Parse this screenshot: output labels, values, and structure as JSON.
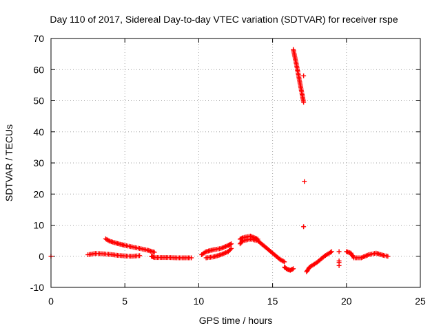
{
  "chart_data": {
    "type": "scatter",
    "title": "Day 110 of 2017, Sidereal Day-to-day VTEC variation (SDTVAR) for receiver rspe",
    "xlabel": "GPS time / hours",
    "ylabel": "SDTVAR / TECUs",
    "xlim": [
      0,
      25
    ],
    "ylim": [
      -10,
      70
    ],
    "xticks": [
      0,
      5,
      10,
      15,
      20,
      25
    ],
    "yticks": [
      -10,
      0,
      10,
      20,
      30,
      40,
      50,
      60,
      70
    ],
    "grid": true,
    "marker": "+",
    "color": "#ff0000",
    "segments": [
      {
        "x": [
          0.0
        ],
        "y": [
          0.0
        ]
      },
      {
        "x": [
          2.5,
          3.0,
          3.5,
          4.0,
          4.5,
          5.0,
          5.5,
          6.0
        ],
        "y": [
          0.5,
          0.9,
          0.8,
          0.6,
          0.3,
          0.1,
          0.0,
          0.2
        ]
      },
      {
        "x": [
          3.7,
          4.0,
          4.5,
          5.0,
          5.5,
          6.0,
          6.5,
          7.0
        ],
        "y": [
          5.6,
          4.8,
          4.1,
          3.5,
          3.0,
          2.5,
          2.0,
          1.3
        ]
      },
      {
        "x": [
          6.8,
          7.0,
          7.5,
          8.0,
          8.5,
          9.0,
          9.5
        ],
        "y": [
          0.0,
          -0.4,
          -0.4,
          -0.4,
          -0.5,
          -0.5,
          -0.5
        ]
      },
      {
        "x": [
          10.2,
          10.5,
          11.0,
          11.5,
          12.0,
          12.2
        ],
        "y": [
          0.5,
          1.5,
          2.1,
          2.5,
          3.5,
          4.0
        ]
      },
      {
        "x": [
          10.5,
          11.0,
          11.5,
          12.0,
          12.2
        ],
        "y": [
          -0.5,
          -0.2,
          0.5,
          1.5,
          2.5
        ]
      },
      {
        "x": [
          12.8,
          13.0,
          13.5,
          14.0,
          14.5,
          15.0,
          15.5,
          15.8
        ],
        "y": [
          4.0,
          5.0,
          5.5,
          5.0,
          3.0,
          1.0,
          -1.0,
          -1.8
        ]
      },
      {
        "x": [
          12.8,
          13.0,
          13.5,
          14.0
        ],
        "y": [
          5.5,
          6.0,
          6.5,
          5.5
        ]
      },
      {
        "x": [
          15.8,
          16.0,
          16.2,
          16.4
        ],
        "y": [
          -3.5,
          -4.2,
          -4.5,
          -4.0
        ]
      },
      {
        "x": [
          16.4,
          16.6,
          16.8,
          17.0,
          17.1
        ],
        "y": [
          66.5,
          62.0,
          57.0,
          52.0,
          49.5
        ]
      },
      {
        "x": [
          17.1,
          17.15,
          17.1
        ],
        "y": [
          58.0,
          24.0,
          9.5
        ]
      },
      {
        "x": [
          17.3,
          17.5,
          18.0,
          18.5,
          19.0
        ],
        "y": [
          -5.0,
          -3.5,
          -2.0,
          0.0,
          1.5
        ]
      },
      {
        "x": [
          19.5,
          19.5,
          19.5,
          19.5
        ],
        "y": [
          1.5,
          -1.5,
          -2.0,
          -3.0
        ]
      },
      {
        "x": [
          20.0,
          20.3,
          20.5,
          21.0,
          21.5,
          22.0,
          22.5,
          22.8
        ],
        "y": [
          1.5,
          1.0,
          -0.5,
          -0.5,
          0.5,
          1.0,
          0.3,
          0.0
        ]
      }
    ]
  }
}
